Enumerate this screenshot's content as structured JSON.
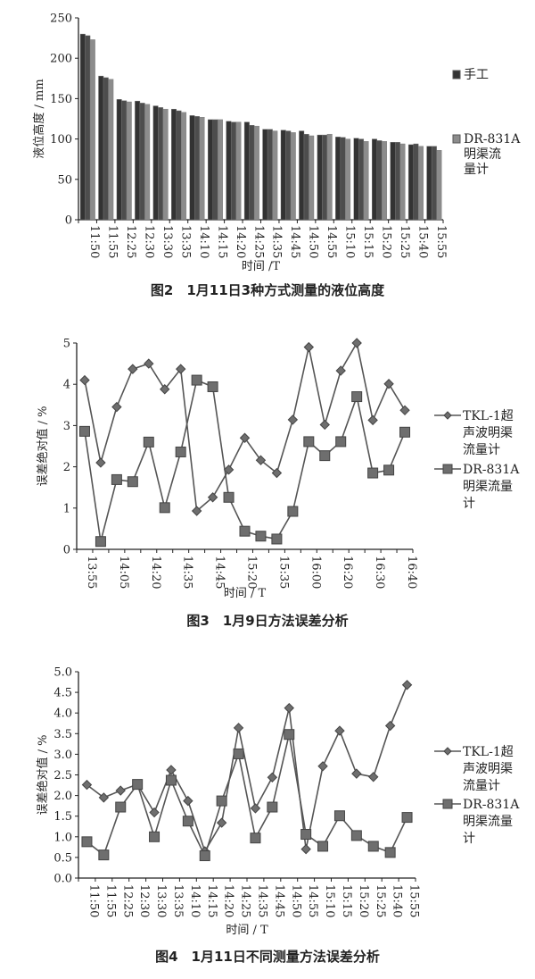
{
  "chart_data": [
    {
      "type": "bar",
      "title": "图2　1月11日3种方式测量的液位高度",
      "xlabel": "时间 /T",
      "ylabel": "液位高度 / mm",
      "ylim": [
        0,
        250
      ],
      "yticks": [
        0,
        50,
        100,
        150,
        200,
        250
      ],
      "grid": false,
      "legend": "right",
      "categories": [
        "11:50",
        "11:55",
        "12:25",
        "12:30",
        "13:30",
        "13:35",
        "14:10",
        "14:15",
        "14:20",
        "14:25",
        "14:35",
        "14:45",
        "14:50",
        "14:55",
        "15:10",
        "15:15",
        "15:20",
        "15:25",
        "15:40",
        "15:55"
      ],
      "series": [
        {
          "name": "手工",
          "color": "#333333",
          "values": [
            230,
            178,
            149,
            147,
            141,
            137,
            129,
            124,
            122,
            121,
            112,
            111,
            110,
            105,
            102.5,
            101,
            100,
            96,
            93,
            91
          ]
        },
        {
          "color": "#4d4d4d",
          "values": [
            228,
            176,
            147.5,
            144.5,
            139,
            135,
            128,
            124,
            121,
            117,
            112,
            110,
            106,
            105,
            102,
            100,
            98,
            96,
            94,
            91
          ]
        },
        {
          "name": "DR-831A明渠流量计",
          "color": "#8c8c8c",
          "values": [
            223,
            174,
            146,
            143,
            137,
            133,
            127,
            124,
            121,
            116,
            110,
            108,
            104,
            106,
            100,
            97,
            97,
            94,
            91,
            86
          ]
        }
      ]
    },
    {
      "type": "line",
      "title": "图3　1月9日方法误差分析",
      "xlabel": "时间 / T",
      "ylabel": "误差绝对值 / %",
      "ylim": [
        0,
        5
      ],
      "yticks": [
        "0",
        "1",
        "2",
        "3",
        "4",
        "5"
      ],
      "grid": false,
      "legend": "right",
      "categories": [
        "13:55",
        "",
        "14:05",
        "",
        "14:20",
        "",
        "14:35",
        "",
        "14:45",
        "",
        "15:20",
        "",
        "15:35",
        "",
        "16:00",
        "",
        "16:20",
        "",
        "16:30",
        "",
        "16:40"
      ],
      "series": [
        {
          "name": "TKL-1超声波明渠流量计",
          "marker": "diamond",
          "color": "#555555",
          "values": [
            4.1,
            2.1,
            3.45,
            4.37,
            4.5,
            3.88,
            4.37,
            0.93,
            1.26,
            1.93,
            2.7,
            2.16,
            1.85,
            3.14,
            4.9,
            3.02,
            4.33,
            5.0,
            3.13,
            4.01,
            3.37
          ]
        },
        {
          "name": "DR-831A明渠流量计",
          "marker": "square",
          "color": "#555555",
          "values": [
            2.86,
            0.19,
            1.69,
            1.64,
            2.6,
            1.01,
            2.36,
            4.1,
            3.94,
            1.26,
            0.44,
            0.32,
            0.25,
            0.92,
            2.61,
            2.27,
            2.61,
            3.7,
            1.85,
            1.92,
            2.84
          ]
        }
      ]
    },
    {
      "type": "line",
      "title": "图4　1月11日不同测量方法误差分析",
      "xlabel": "时间 / T",
      "ylabel": "误差绝对值 / %",
      "ylim": [
        0,
        5
      ],
      "yticks": [
        "0.0",
        "0.5",
        "1.0",
        "1.5",
        "2.0",
        "2.5",
        "3.0",
        "3.5",
        "4.0",
        "4.5",
        "5.0"
      ],
      "grid": false,
      "legend": "right",
      "categories": [
        "11:50",
        "11:55",
        "12:25",
        "12:30",
        "13:30",
        "13:35",
        "14:10",
        "14:15",
        "14:20",
        "14:25",
        "14:35",
        "14:45",
        "14:50",
        "14:55",
        "15:10",
        "15:15",
        "15:20",
        "15:25",
        "15:40",
        "15:55"
      ],
      "series": [
        {
          "name": "TKL-1超声波明渠流量计",
          "marker": "diamond",
          "color": "#555555",
          "values": [
            2.26,
            1.95,
            2.12,
            2.27,
            1.59,
            2.62,
            1.87,
            0.65,
            1.34,
            3.64,
            1.69,
            2.44,
            4.12,
            0.7,
            2.71,
            3.57,
            2.53,
            2.45,
            3.69,
            4.68
          ]
        },
        {
          "name": "DR-831A明渠流量计",
          "marker": "square",
          "color": "#555555",
          "values": [
            0.88,
            0.56,
            1.72,
            2.27,
            1.0,
            2.37,
            1.38,
            0.54,
            1.87,
            3.01,
            0.97,
            1.72,
            3.48,
            1.06,
            0.77,
            1.51,
            1.03,
            0.77,
            0.62,
            1.47
          ]
        }
      ]
    }
  ]
}
